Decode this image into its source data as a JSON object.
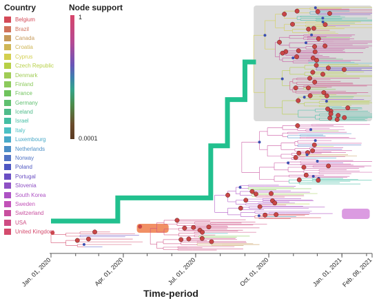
{
  "legend": {
    "title": "Country",
    "countries": [
      {
        "name": "Belgium",
        "color": "#d44a58"
      },
      {
        "name": "Brazil",
        "color": "#d0725b"
      },
      {
        "name": "Canada",
        "color": "#c69a5a"
      },
      {
        "name": "Croatia",
        "color": "#cfb656"
      },
      {
        "name": "Cyprus",
        "color": "#d3cf4f"
      },
      {
        "name": "Czech Republic",
        "color": "#b7d046"
      },
      {
        "name": "Denmark",
        "color": "#a0cc55"
      },
      {
        "name": "Finland",
        "color": "#8cca5c"
      },
      {
        "name": "France",
        "color": "#6fc35c"
      },
      {
        "name": "Germany",
        "color": "#5fbf6f"
      },
      {
        "name": "Iceland",
        "color": "#4fbb8a"
      },
      {
        "name": "Israel",
        "color": "#43bea3"
      },
      {
        "name": "Italy",
        "color": "#4bc0c4"
      },
      {
        "name": "Luxembourg",
        "color": "#48a9c8"
      },
      {
        "name": "Netherlands",
        "color": "#4b8ec6"
      },
      {
        "name": "Norway",
        "color": "#5173c4"
      },
      {
        "name": "Poland",
        "color": "#4d56c2"
      },
      {
        "name": "Portugal",
        "color": "#6a4ec3"
      },
      {
        "name": "Slovenia",
        "color": "#8e51c4"
      },
      {
        "name": "South Korea",
        "color": "#ad52c4"
      },
      {
        "name": "Sweden",
        "color": "#c252b8"
      },
      {
        "name": "Switzerland",
        "color": "#c84f9e"
      },
      {
        "name": "USA",
        "color": "#ce4c83"
      },
      {
        "name": "United Kingdom",
        "color": "#d44b6d"
      }
    ]
  },
  "node_support": {
    "title": "Node support",
    "max_label": "1",
    "min_label": "0.0001"
  },
  "chart_data": {
    "type": "scatter",
    "title": "",
    "xlabel": "Time-period",
    "ylabel": "",
    "x_ticks": [
      "Jan. 01, 2020",
      "Apr. 01, 2020",
      "Jul. 01, 2020",
      "Oct. 01, 2020",
      "Jan. 01, 2021",
      "Feb. 08, 2021"
    ],
    "xlim": [
      "2020-01-01",
      "2021-02-08"
    ],
    "grid": false,
    "backbone_lineage": {
      "color": "#22c08e",
      "steps": [
        {
          "date": "2020-01-01",
          "level": 0
        },
        {
          "date": "2020-03-25",
          "level": 0.08
        },
        {
          "date": "2020-07-20",
          "level": 0.26
        },
        {
          "date": "2020-08-10",
          "level": 0.42
        },
        {
          "date": "2020-09-01",
          "level": 0.55
        }
      ]
    },
    "highlighted_clades": [
      {
        "name": "clade-grey",
        "color": "#d4d4d4",
        "date_start": "2020-09-12",
        "date_end": "2021-02-08"
      },
      {
        "name": "clade-orange",
        "color": "#ef7d4a",
        "date_start": "2020-04-18",
        "date_end": "2020-05-28"
      },
      {
        "name": "clade-violet",
        "color": "#d589dc",
        "date_start": "2021-01-01",
        "date_end": "2021-02-05"
      }
    ]
  }
}
